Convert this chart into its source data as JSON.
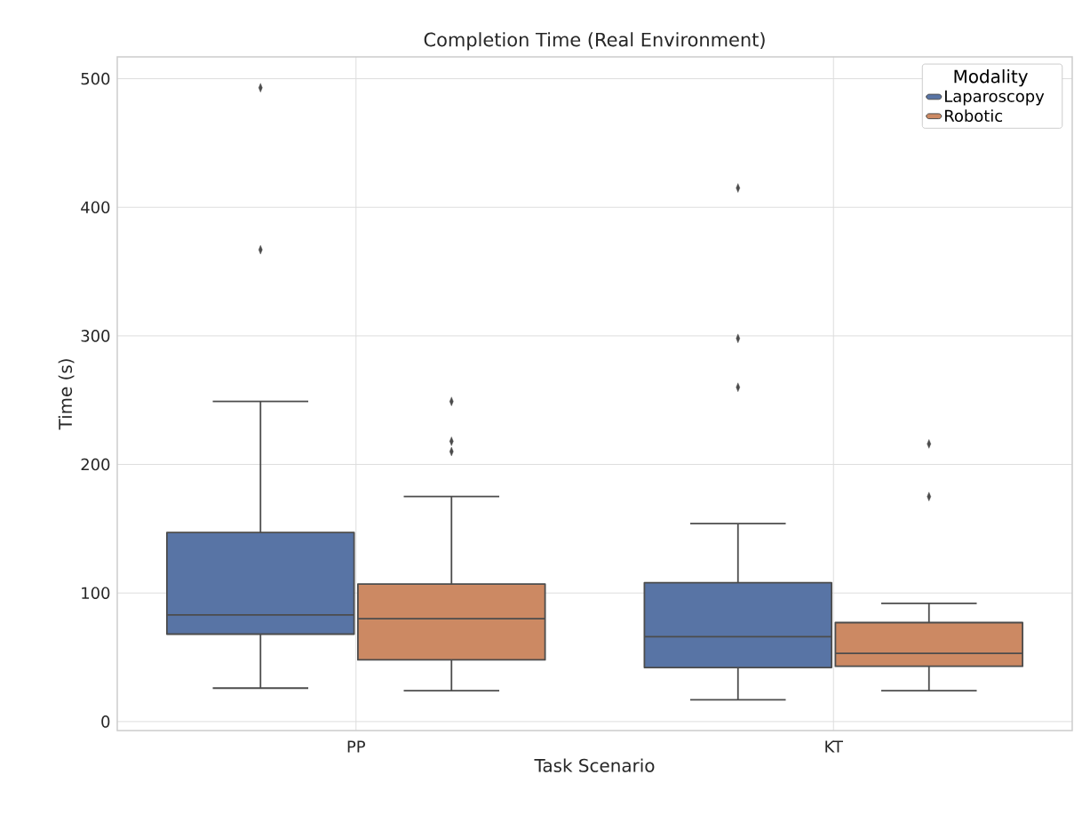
{
  "chart_data": {
    "type": "box",
    "title": "Completion Time (Real Environment)",
    "xlabel": "Task Scenario",
    "ylabel": "Time (s)",
    "legend_title": "Modality",
    "categories": [
      "PP",
      "KT"
    ],
    "series": [
      {
        "name": "Laparoscopy",
        "color": "#5874a5",
        "boxes": [
          {
            "low": 26,
            "q1": 68,
            "median": 83,
            "q3": 147,
            "high": 249,
            "outliers": [
              493,
              367
            ]
          },
          {
            "low": 17,
            "q1": 42,
            "median": 66,
            "q3": 108,
            "high": 154,
            "outliers": [
              415,
              298,
              260
            ]
          }
        ]
      },
      {
        "name": "Robotic",
        "color": "#cc8963",
        "boxes": [
          {
            "low": 24,
            "q1": 48,
            "median": 80,
            "q3": 107,
            "high": 175,
            "outliers": [
              249,
              218,
              210
            ]
          },
          {
            "low": 24,
            "q1": 43,
            "median": 53,
            "q3": 77,
            "high": 92,
            "outliers": [
              216,
              175
            ]
          }
        ]
      }
    ],
    "ylim": [
      -7,
      517
    ],
    "yticks": [
      0,
      100,
      200,
      300,
      400,
      500
    ],
    "grid": true,
    "legend": "top right",
    "marker": "diamond"
  }
}
